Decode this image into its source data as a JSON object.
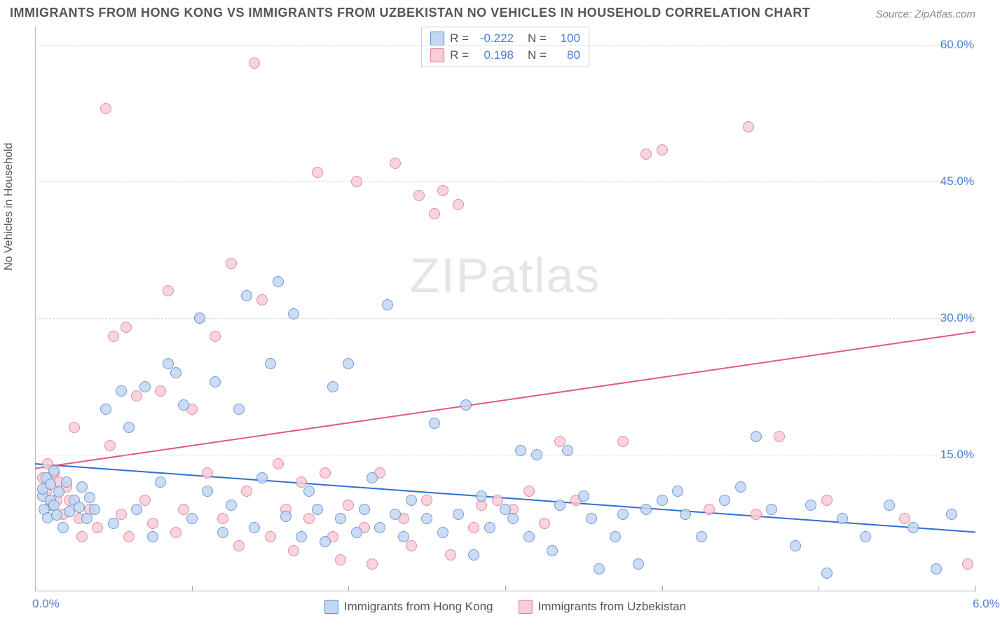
{
  "title": "IMMIGRANTS FROM HONG KONG VS IMMIGRANTS FROM UZBEKISTAN NO VEHICLES IN HOUSEHOLD CORRELATION CHART",
  "source": "Source: ZipAtlas.com",
  "ylabel": "No Vehicles in Household",
  "watermark": "ZIPatlas",
  "chart": {
    "type": "scatter",
    "background_color": "#ffffff",
    "grid_color": "#d8d8d8",
    "axis_color": "#bbbbbb",
    "tick_color": "#4a7fd8",
    "label_color": "#555555",
    "title_fontsize": 18,
    "label_fontsize": 16,
    "tick_fontsize": 17,
    "xlim": [
      0,
      6
    ],
    "ylim": [
      0,
      62
    ],
    "yticks": [
      15,
      30,
      45,
      60
    ],
    "ytick_labels": [
      "15.0%",
      "30.0%",
      "45.0%",
      "60.0%"
    ],
    "xticks": [
      0,
      1,
      2,
      3,
      4,
      5,
      6
    ],
    "xtick_labels_shown": {
      "0": "0.0%",
      "6": "6.0%"
    },
    "marker_radius": 8,
    "marker_border_width": 1.5,
    "trend_line_width": 2
  },
  "legend_stats": [
    {
      "key": "hk",
      "R_label": "R =",
      "R": "-0.222",
      "N_label": "N =",
      "N": "100"
    },
    {
      "key": "uz",
      "R_label": "R =",
      "R": "0.198",
      "N_label": "N =",
      "N": "80"
    }
  ],
  "series": {
    "hk": {
      "label": "Immigrants from Hong Kong",
      "fill": "#c3d6f2",
      "stroke": "#5a8ad0",
      "trend_color": "#2f6fd0",
      "trend": {
        "y_at_x0": 14.0,
        "y_at_x6": 6.5
      },
      "points": [
        [
          0.05,
          10.5
        ],
        [
          0.05,
          11.2
        ],
        [
          0.06,
          9.0
        ],
        [
          0.07,
          12.5
        ],
        [
          0.08,
          8.1
        ],
        [
          0.1,
          10.0
        ],
        [
          0.1,
          11.8
        ],
        [
          0.12,
          9.5
        ],
        [
          0.12,
          13.2
        ],
        [
          0.14,
          8.4
        ],
        [
          0.15,
          10.9
        ],
        [
          0.18,
          7.0
        ],
        [
          0.2,
          12.0
        ],
        [
          0.22,
          8.8
        ],
        [
          0.25,
          10.0
        ],
        [
          0.28,
          9.2
        ],
        [
          0.3,
          11.5
        ],
        [
          0.33,
          8.0
        ],
        [
          0.35,
          10.3
        ],
        [
          0.38,
          9.0
        ],
        [
          0.45,
          20.0
        ],
        [
          0.5,
          7.5
        ],
        [
          0.55,
          22.0
        ],
        [
          0.6,
          18.0
        ],
        [
          0.65,
          9.0
        ],
        [
          0.7,
          22.5
        ],
        [
          0.75,
          6.0
        ],
        [
          0.8,
          12.0
        ],
        [
          0.85,
          25.0
        ],
        [
          0.9,
          24.0
        ],
        [
          0.95,
          20.5
        ],
        [
          1.0,
          8.0
        ],
        [
          1.05,
          30.0
        ],
        [
          1.1,
          11.0
        ],
        [
          1.15,
          23.0
        ],
        [
          1.2,
          6.5
        ],
        [
          1.25,
          9.5
        ],
        [
          1.3,
          20.0
        ],
        [
          1.35,
          32.5
        ],
        [
          1.4,
          7.0
        ],
        [
          1.45,
          12.5
        ],
        [
          1.5,
          25.0
        ],
        [
          1.55,
          34.0
        ],
        [
          1.6,
          8.2
        ],
        [
          1.65,
          30.5
        ],
        [
          1.7,
          6.0
        ],
        [
          1.75,
          11.0
        ],
        [
          1.8,
          9.0
        ],
        [
          1.85,
          5.5
        ],
        [
          1.9,
          22.5
        ],
        [
          1.95,
          8.0
        ],
        [
          2.0,
          25.0
        ],
        [
          2.05,
          6.5
        ],
        [
          2.1,
          9.0
        ],
        [
          2.15,
          12.5
        ],
        [
          2.2,
          7.0
        ],
        [
          2.25,
          31.5
        ],
        [
          2.3,
          8.5
        ],
        [
          2.35,
          6.0
        ],
        [
          2.4,
          10.0
        ],
        [
          2.5,
          8.0
        ],
        [
          2.55,
          18.5
        ],
        [
          2.6,
          6.5
        ],
        [
          2.7,
          8.5
        ],
        [
          2.75,
          20.5
        ],
        [
          2.8,
          4.0
        ],
        [
          2.85,
          10.5
        ],
        [
          2.9,
          7.0
        ],
        [
          3.0,
          9.0
        ],
        [
          3.05,
          8.0
        ],
        [
          3.1,
          15.5
        ],
        [
          3.15,
          6.0
        ],
        [
          3.2,
          15.0
        ],
        [
          3.3,
          4.5
        ],
        [
          3.35,
          9.5
        ],
        [
          3.4,
          15.5
        ],
        [
          3.5,
          10.5
        ],
        [
          3.55,
          8.0
        ],
        [
          3.6,
          2.5
        ],
        [
          3.7,
          6.0
        ],
        [
          3.75,
          8.5
        ],
        [
          3.85,
          3.0
        ],
        [
          3.9,
          9.0
        ],
        [
          4.0,
          10.0
        ],
        [
          4.1,
          11.0
        ],
        [
          4.15,
          8.5
        ],
        [
          4.25,
          6.0
        ],
        [
          4.4,
          10.0
        ],
        [
          4.5,
          11.5
        ],
        [
          4.6,
          17.0
        ],
        [
          4.7,
          9.0
        ],
        [
          4.85,
          5.0
        ],
        [
          4.95,
          9.5
        ],
        [
          5.05,
          2.0
        ],
        [
          5.15,
          8.0
        ],
        [
          5.3,
          6.0
        ],
        [
          5.45,
          9.5
        ],
        [
          5.6,
          7.0
        ],
        [
          5.75,
          2.5
        ],
        [
          5.85,
          8.5
        ]
      ]
    },
    "uz": {
      "label": "Immigrants from Uzbekistan",
      "fill": "#f7cdd7",
      "stroke": "#e07a95",
      "trend_color": "#e05a85",
      "trend": {
        "y_at_x0": 13.5,
        "y_at_x6": 28.5
      },
      "points": [
        [
          0.05,
          12.5
        ],
        [
          0.07,
          11.0
        ],
        [
          0.08,
          14.0
        ],
        [
          0.1,
          9.5
        ],
        [
          0.12,
          13.0
        ],
        [
          0.14,
          10.0
        ],
        [
          0.15,
          12.0
        ],
        [
          0.18,
          8.5
        ],
        [
          0.2,
          11.5
        ],
        [
          0.22,
          10.0
        ],
        [
          0.25,
          18.0
        ],
        [
          0.28,
          8.0
        ],
        [
          0.3,
          6.0
        ],
        [
          0.35,
          9.0
        ],
        [
          0.4,
          7.0
        ],
        [
          0.45,
          53.0
        ],
        [
          0.48,
          16.0
        ],
        [
          0.5,
          28.0
        ],
        [
          0.55,
          8.5
        ],
        [
          0.58,
          29.0
        ],
        [
          0.6,
          6.0
        ],
        [
          0.65,
          21.5
        ],
        [
          0.7,
          10.0
        ],
        [
          0.75,
          7.5
        ],
        [
          0.8,
          22.0
        ],
        [
          0.85,
          33.0
        ],
        [
          0.9,
          6.5
        ],
        [
          0.95,
          9.0
        ],
        [
          1.0,
          20.0
        ],
        [
          1.05,
          30.0
        ],
        [
          1.1,
          13.0
        ],
        [
          1.15,
          28.0
        ],
        [
          1.2,
          8.0
        ],
        [
          1.25,
          36.0
        ],
        [
          1.3,
          5.0
        ],
        [
          1.35,
          11.0
        ],
        [
          1.4,
          58.0
        ],
        [
          1.45,
          32.0
        ],
        [
          1.5,
          6.0
        ],
        [
          1.55,
          14.0
        ],
        [
          1.6,
          9.0
        ],
        [
          1.65,
          4.5
        ],
        [
          1.7,
          12.0
        ],
        [
          1.75,
          8.0
        ],
        [
          1.8,
          46.0
        ],
        [
          1.85,
          13.0
        ],
        [
          1.9,
          6.0
        ],
        [
          1.95,
          3.5
        ],
        [
          2.0,
          9.5
        ],
        [
          2.05,
          45.0
        ],
        [
          2.1,
          7.0
        ],
        [
          2.15,
          3.0
        ],
        [
          2.2,
          13.0
        ],
        [
          2.3,
          47.0
        ],
        [
          2.35,
          8.0
        ],
        [
          2.4,
          5.0
        ],
        [
          2.45,
          43.5
        ],
        [
          2.5,
          10.0
        ],
        [
          2.55,
          41.5
        ],
        [
          2.6,
          44.0
        ],
        [
          2.65,
          4.0
        ],
        [
          2.7,
          42.5
        ],
        [
          2.8,
          7.0
        ],
        [
          2.85,
          9.5
        ],
        [
          2.95,
          10.0
        ],
        [
          3.05,
          9.0
        ],
        [
          3.15,
          11.0
        ],
        [
          3.25,
          7.5
        ],
        [
          3.35,
          16.5
        ],
        [
          3.45,
          10.0
        ],
        [
          3.75,
          16.5
        ],
        [
          3.9,
          48.0
        ],
        [
          4.0,
          48.5
        ],
        [
          4.3,
          9.0
        ],
        [
          4.55,
          51.0
        ],
        [
          4.6,
          8.5
        ],
        [
          4.75,
          17.0
        ],
        [
          5.05,
          10.0
        ],
        [
          5.55,
          8.0
        ],
        [
          5.95,
          3.0
        ]
      ]
    }
  },
  "bottom_legend": [
    {
      "key": "hk",
      "label": "Immigrants from Hong Kong"
    },
    {
      "key": "uz",
      "label": "Immigrants from Uzbekistan"
    }
  ]
}
